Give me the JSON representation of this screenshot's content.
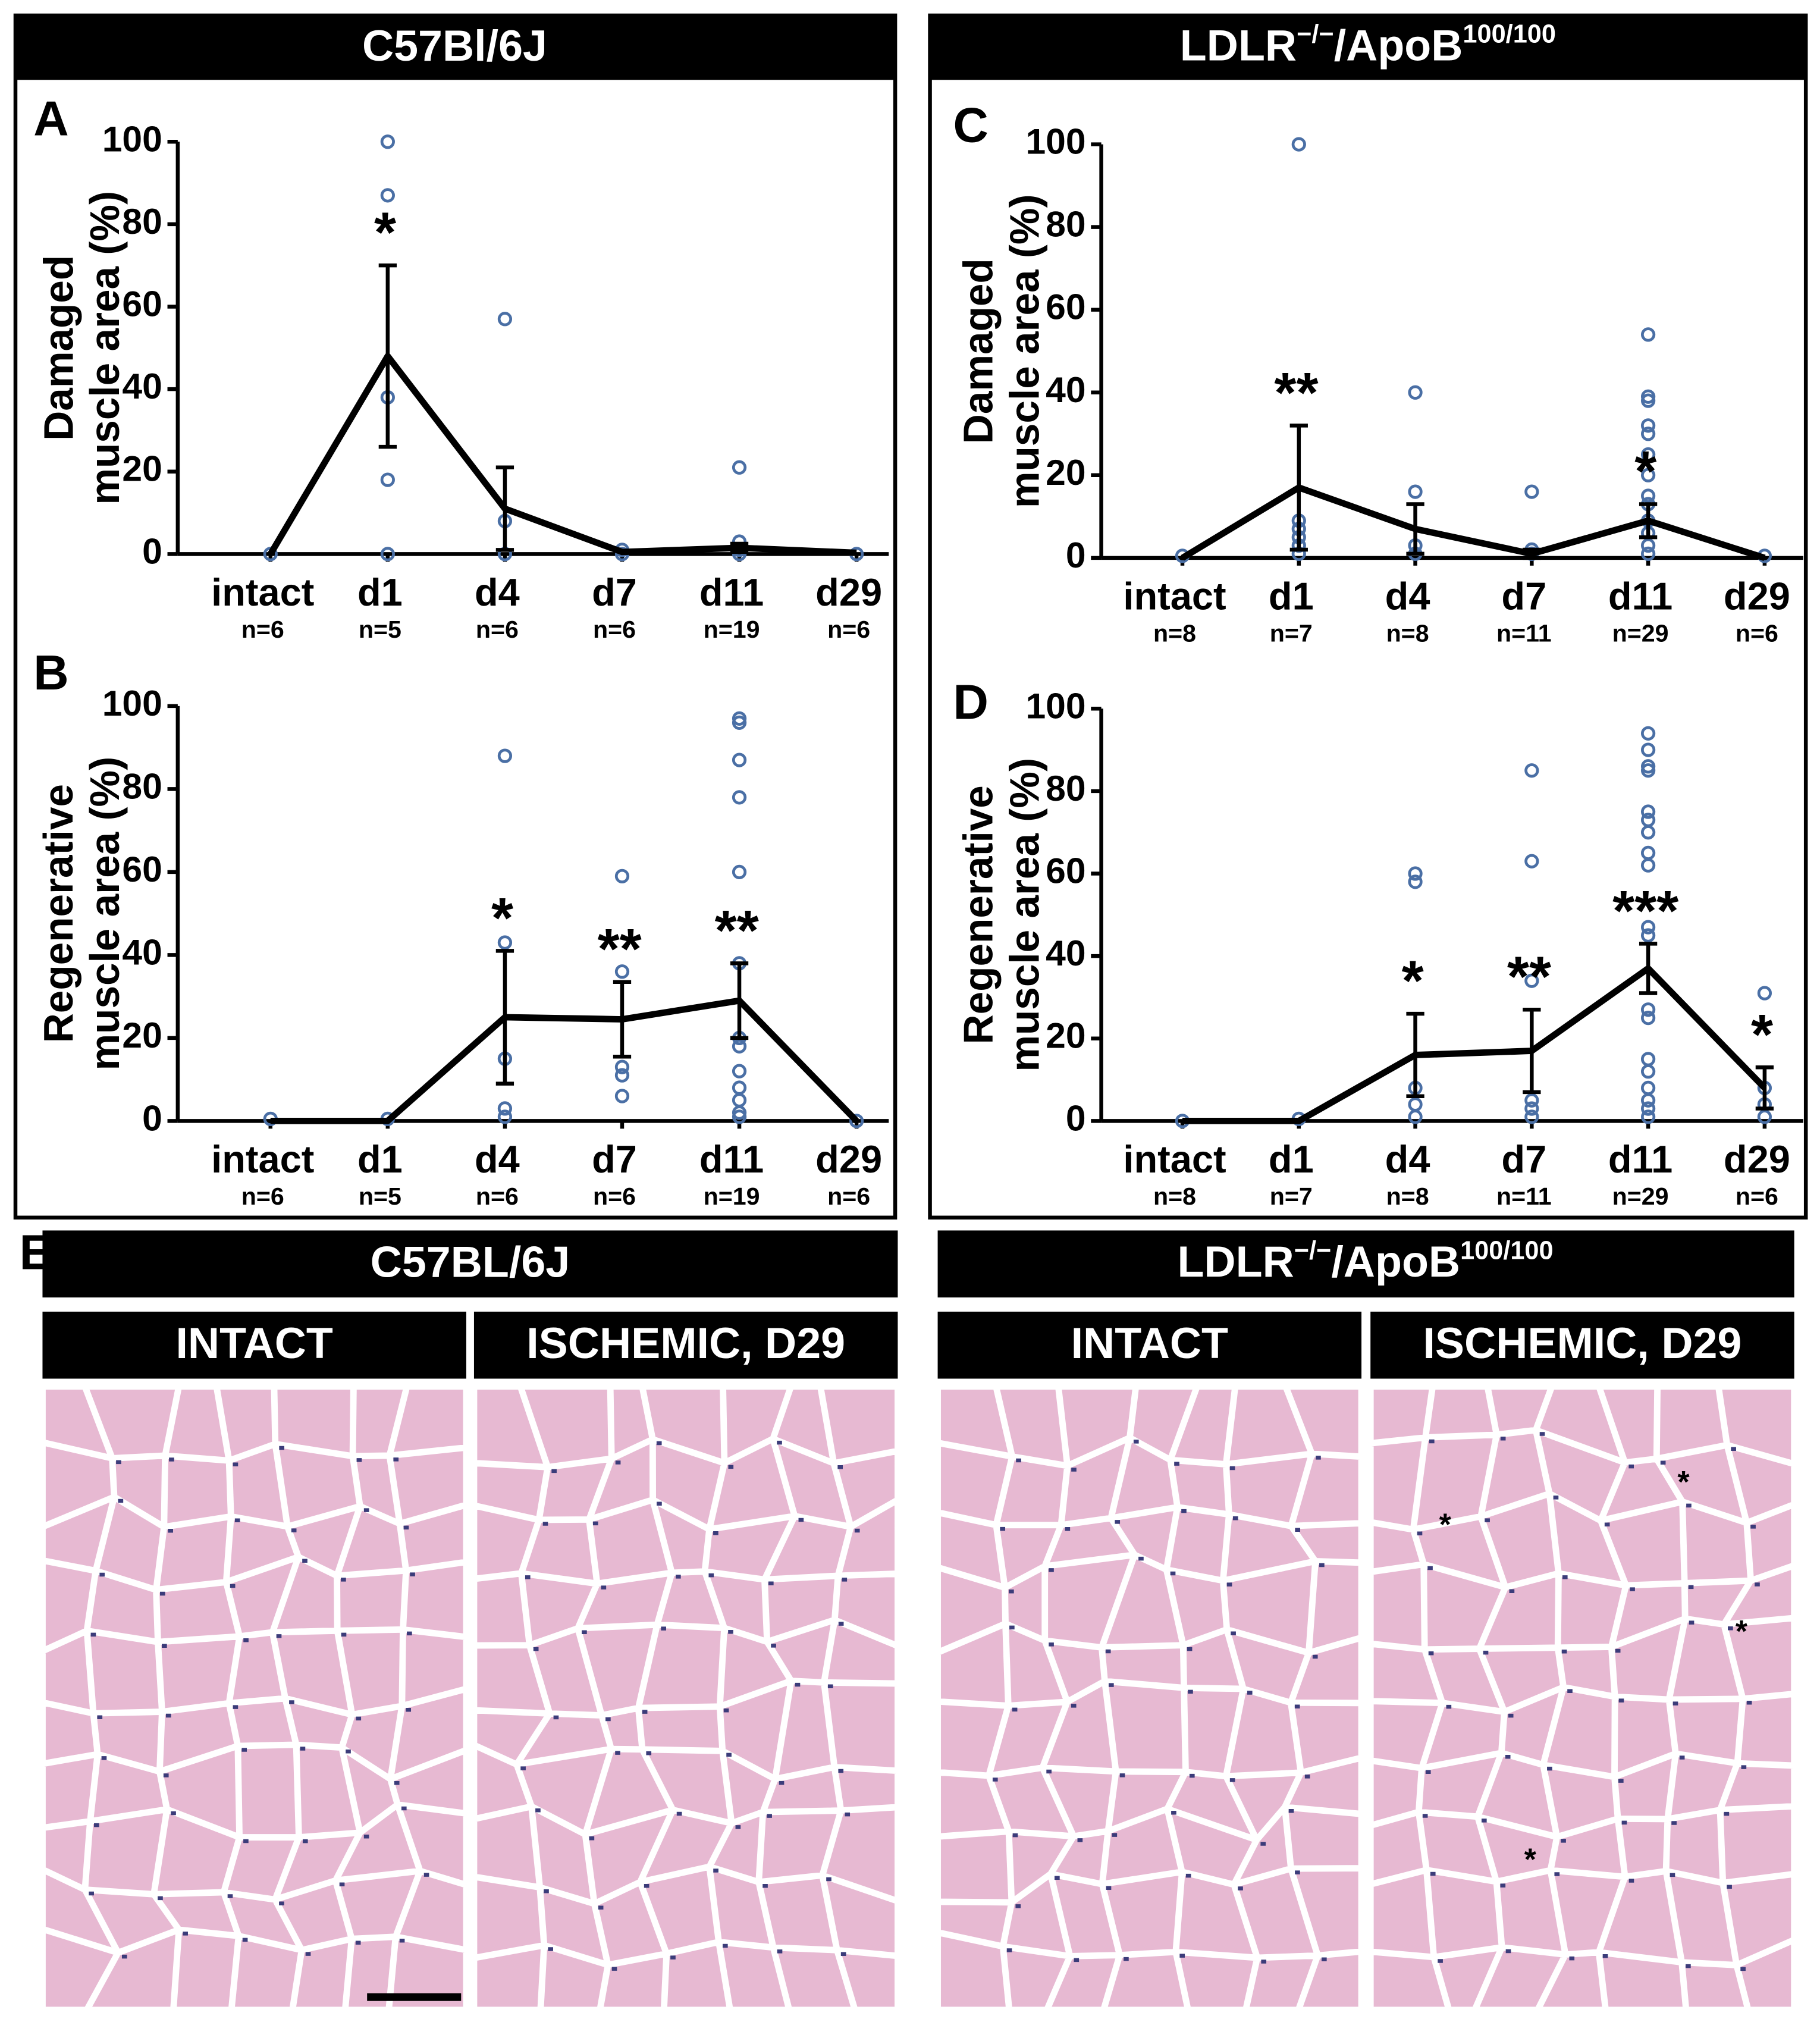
{
  "header_left": "C57Bl/6J",
  "header_right": {
    "base": "LDLR",
    "sup1": "−/−",
    "mid": "/ApoB",
    "sup2": "100/100"
  },
  "chart_data": [
    {
      "type": "line",
      "panel": "A",
      "ylabel": [
        "Damaged",
        "muscle area (%)"
      ],
      "categories": [
        "intact",
        "d1",
        "d4",
        "d7",
        "d11",
        "d29"
      ],
      "n_labels": [
        "n=6",
        "n=5",
        "n=6",
        "n=6",
        "n=19",
        "n=6"
      ],
      "values": [
        0,
        48,
        11,
        0.5,
        1.5,
        0.3
      ],
      "errors": [
        0,
        22,
        10,
        0,
        1,
        0
      ],
      "points": [
        [
          0
        ],
        [
          100,
          87,
          38,
          18,
          0
        ],
        [
          57,
          8,
          0
        ],
        [
          1,
          0
        ],
        [
          21,
          3,
          1,
          0
        ],
        [
          0
        ]
      ],
      "stars": [
        null,
        "*",
        null,
        null,
        null,
        null
      ],
      "color": "#000000",
      "point_color": "#4a6fa5",
      "ylim": [
        0,
        100
      ],
      "yticks": [
        0,
        20,
        40,
        60,
        80,
        100
      ]
    },
    {
      "type": "line",
      "panel": "B",
      "ylabel": [
        "Regenerative",
        "muscle area (%)"
      ],
      "categories": [
        "intact",
        "d1",
        "d4",
        "d7",
        "d11",
        "d29"
      ],
      "n_labels": [
        "n=6",
        "n=5",
        "n=6",
        "n=6",
        "n=19",
        "n=6"
      ],
      "values": [
        0,
        0,
        25,
        24.5,
        29,
        0
      ],
      "errors": [
        0,
        0,
        16,
        9,
        9,
        0
      ],
      "points": [
        [
          0.5
        ],
        [
          0.5
        ],
        [
          88,
          43,
          15,
          3,
          1
        ],
        [
          59,
          36,
          13,
          11,
          6
        ],
        [
          97,
          96,
          87,
          78,
          60,
          38,
          20,
          18,
          12,
          8,
          5,
          2,
          1
        ],
        [
          0
        ]
      ],
      "stars": [
        null,
        null,
        "*",
        "**",
        "**",
        null
      ],
      "color": "#000000",
      "point_color": "#4a6fa5",
      "ylim": [
        0,
        100
      ],
      "yticks": [
        0,
        20,
        40,
        60,
        80,
        100
      ]
    },
    {
      "type": "line",
      "panel": "C",
      "ylabel": [
        "Damaged",
        "muscle area (%)"
      ],
      "categories": [
        "intact",
        "d1",
        "d4",
        "d7",
        "d11",
        "d29"
      ],
      "n_labels": [
        "n=8",
        "n=7",
        "n=8",
        "n=11",
        "n=29",
        "n=6"
      ],
      "values": [
        0,
        17,
        7,
        1,
        9,
        0
      ],
      "errors": [
        0,
        15,
        6,
        1,
        4,
        0
      ],
      "points": [
        [
          0.5
        ],
        [
          100,
          9,
          7,
          5,
          3,
          1
        ],
        [
          40,
          16,
          3,
          1
        ],
        [
          16,
          2,
          1
        ],
        [
          54,
          39,
          38,
          32,
          30,
          25,
          20,
          15,
          13,
          9,
          6,
          3,
          1
        ],
        [
          0.5
        ]
      ],
      "stars": [
        null,
        "**",
        null,
        null,
        "*",
        null
      ],
      "color": "#000000",
      "point_color": "#4a6fa5",
      "ylim": [
        0,
        100
      ],
      "yticks": [
        0,
        20,
        40,
        60,
        80,
        100
      ]
    },
    {
      "type": "line",
      "panel": "D",
      "ylabel": [
        "Regenerative",
        "muscle area (%)"
      ],
      "categories": [
        "intact",
        "d1",
        "d4",
        "d7",
        "d11",
        "d29"
      ],
      "n_labels": [
        "n=8",
        "n=7",
        "n=8",
        "n=11",
        "n=29",
        "n=6"
      ],
      "values": [
        0,
        0,
        16,
        17,
        37,
        8
      ],
      "errors": [
        0,
        0,
        10,
        10,
        6,
        5
      ],
      "points": [
        [
          0
        ],
        [
          0.5
        ],
        [
          60,
          58,
          8,
          4,
          1
        ],
        [
          85,
          63,
          34,
          5,
          3,
          1
        ],
        [
          94,
          90,
          86,
          85,
          75,
          73,
          70,
          65,
          62,
          47,
          45,
          27,
          25,
          15,
          12,
          8,
          5,
          3,
          1
        ],
        [
          31,
          8,
          4,
          1
        ]
      ],
      "stars": [
        null,
        null,
        "*",
        "**",
        "***",
        "*"
      ],
      "color": "#000000",
      "point_color": "#4a6fa5",
      "ylim": [
        0,
        100
      ],
      "yticks": [
        0,
        20,
        40,
        60,
        80,
        100
      ]
    }
  ],
  "panel_e": {
    "letter": "E",
    "title_left": "C57BL/6J",
    "title_right": {
      "base": "LDLR",
      "sup1": "−/−",
      "mid": "/ApoB",
      "sup2": "100/100"
    },
    "columns": [
      "INTACT",
      "ISCHEMIC, D29",
      "INTACT",
      "ISCHEMIC, D29"
    ],
    "image_marks": [
      "*",
      "*",
      "*",
      "*"
    ]
  }
}
